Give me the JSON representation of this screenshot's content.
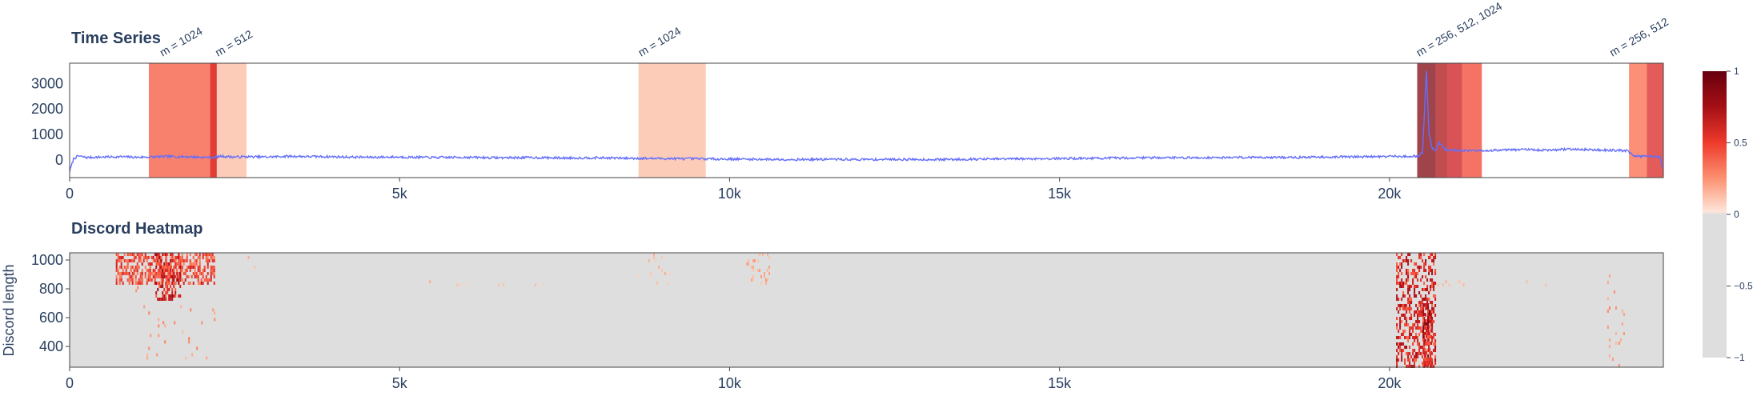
{
  "chart_data": [
    {
      "type": "line",
      "title": "Time Series",
      "xlim": [
        0,
        24150
      ],
      "ylim": [
        -700,
        3800
      ],
      "x_ticks": [
        {
          "value": 0,
          "label": "0"
        },
        {
          "value": 5000,
          "label": "5k"
        },
        {
          "value": 10000,
          "label": "10k"
        },
        {
          "value": 15000,
          "label": "15k"
        },
        {
          "value": 20000,
          "label": "20k"
        }
      ],
      "y_ticks": [
        {
          "value": 0,
          "label": "0"
        },
        {
          "value": 1000,
          "label": "1000"
        },
        {
          "value": 2000,
          "label": "2000"
        },
        {
          "value": 3000,
          "label": "3000"
        }
      ],
      "series_color": "#636efa",
      "series": [
        {
          "x": [
            0,
            60,
            130,
            260,
            500,
            800,
            1000,
            1200,
            1500,
            1800,
            2000,
            2200,
            2300,
            2500,
            2700,
            3000,
            3300,
            3600,
            4000,
            4500,
            5000,
            5500,
            6000,
            6500,
            7000,
            7500,
            8000,
            8500,
            9000,
            9500,
            10000,
            10500,
            11000,
            11500,
            12000,
            12500,
            13000,
            13500,
            14000,
            14500,
            15000,
            15500,
            16000,
            16500,
            17000,
            17500,
            18000,
            18500,
            19000,
            19500,
            20000,
            20300,
            20450,
            20500,
            20560,
            20600,
            20650,
            20700,
            20750,
            20850,
            21000,
            21300,
            21600,
            22000,
            22400,
            22700,
            23000,
            23300,
            23600,
            23700,
            23900,
            24100,
            24130
          ],
          "y": [
            -450,
            40,
            150,
            90,
            110,
            120,
            100,
            110,
            130,
            120,
            100,
            95,
            140,
            110,
            120,
            110,
            140,
            130,
            120,
            100,
            110,
            90,
            100,
            80,
            90,
            70,
            80,
            60,
            50,
            40,
            30,
            20,
            10,
            20,
            10,
            20,
            10,
            20,
            30,
            40,
            50,
            60,
            70,
            90,
            80,
            90,
            100,
            90,
            110,
            120,
            130,
            140,
            150,
            300,
            3500,
            1000,
            450,
            350,
            700,
            400,
            380,
            350,
            380,
            400,
            380,
            420,
            400,
            380,
            360,
            150,
            140,
            120,
            -300
          ]
        }
      ],
      "shaded_regions": [
        {
          "start": 1200,
          "end": 2230,
          "level": 0.55
        },
        {
          "start": 2130,
          "end": 2230,
          "level": 0.7
        },
        {
          "start": 2230,
          "end": 2680,
          "level": 0.25
        },
        {
          "start": 8620,
          "end": 9640,
          "level": 0.25
        },
        {
          "start": 20420,
          "end": 20700,
          "level": 0.95
        },
        {
          "start": 20700,
          "end": 20880,
          "level": 0.85
        },
        {
          "start": 20880,
          "end": 21100,
          "level": 0.75
        },
        {
          "start": 21100,
          "end": 21400,
          "level": 0.6
        },
        {
          "start": 23630,
          "end": 23900,
          "level": 0.5
        },
        {
          "start": 23900,
          "end": 24150,
          "level": 0.7
        }
      ],
      "annotations": [
        {
          "x": 1530,
          "text": "m = 1024"
        },
        {
          "x": 2370,
          "text": "m = 512"
        },
        {
          "x": 8780,
          "text": "m = 1024"
        },
        {
          "x": 20570,
          "text": "m = 256, 512, 1024"
        },
        {
          "x": 23500,
          "text": "m = 256, 512"
        }
      ]
    },
    {
      "type": "heatmap",
      "title": "Discord Heatmap",
      "ylabel": "Discord length",
      "xlim": [
        0,
        24150
      ],
      "ylim": [
        256,
        1050
      ],
      "x_ticks": [
        {
          "value": 0,
          "label": "0"
        },
        {
          "value": 5000,
          "label": "5k"
        },
        {
          "value": 10000,
          "label": "10k"
        },
        {
          "value": 15000,
          "label": "15k"
        },
        {
          "value": 20000,
          "label": "20k"
        }
      ],
      "y_ticks": [
        {
          "value": 400,
          "label": "400"
        },
        {
          "value": 600,
          "label": "600"
        },
        {
          "value": 800,
          "label": "800"
        },
        {
          "value": 1000,
          "label": "1000"
        }
      ],
      "background_value": -1,
      "colorbar": {
        "range": [
          -1,
          1
        ],
        "ticks": [
          {
            "value": 1,
            "label": "1"
          },
          {
            "value": 0.5,
            "label": "0.5"
          },
          {
            "value": 0,
            "label": "0"
          },
          {
            "value": -0.5,
            "label": "−0.5"
          },
          {
            "value": -1,
            "label": "−1"
          }
        ]
      },
      "clusters": [
        {
          "x0": 700,
          "x1": 2200,
          "y0": 820,
          "y1": 1050,
          "density": 0.55,
          "intensity": 0.75
        },
        {
          "x0": 1300,
          "x1": 1700,
          "y0": 720,
          "y1": 1050,
          "density": 0.5,
          "intensity": 0.9
        },
        {
          "x0": 900,
          "x1": 2200,
          "y0": 300,
          "y1": 820,
          "density": 0.03,
          "intensity": 0.45
        },
        {
          "x0": 2700,
          "x1": 2850,
          "y0": 820,
          "y1": 1050,
          "density": 0.08,
          "intensity": 0.3
        },
        {
          "x0": 5400,
          "x1": 7500,
          "y0": 820,
          "y1": 860,
          "density": 0.04,
          "intensity": 0.3
        },
        {
          "x0": 8600,
          "x1": 9100,
          "y0": 820,
          "y1": 1050,
          "density": 0.06,
          "intensity": 0.3
        },
        {
          "x0": 10250,
          "x1": 10650,
          "y0": 830,
          "y1": 1050,
          "density": 0.2,
          "intensity": 0.35
        },
        {
          "x0": 20100,
          "x1": 20700,
          "y0": 256,
          "y1": 1050,
          "density": 0.45,
          "intensity": 0.9
        },
        {
          "x0": 20500,
          "x1": 20650,
          "y0": 256,
          "y1": 700,
          "density": 0.6,
          "intensity": 0.95
        },
        {
          "x0": 20700,
          "x1": 21200,
          "y0": 820,
          "y1": 860,
          "density": 0.1,
          "intensity": 0.3
        },
        {
          "x0": 21800,
          "x1": 22400,
          "y0": 820,
          "y1": 860,
          "density": 0.06,
          "intensity": 0.3
        },
        {
          "x0": 23300,
          "x1": 23600,
          "y0": 256,
          "y1": 900,
          "density": 0.04,
          "intensity": 0.45
        },
        {
          "x0": 14800,
          "x1": 14900,
          "y0": 820,
          "y1": 860,
          "density": 0.05,
          "intensity": 0.25
        },
        {
          "x0": 17100,
          "x1": 17200,
          "y0": 820,
          "y1": 860,
          "density": 0.05,
          "intensity": 0.25
        }
      ]
    }
  ]
}
